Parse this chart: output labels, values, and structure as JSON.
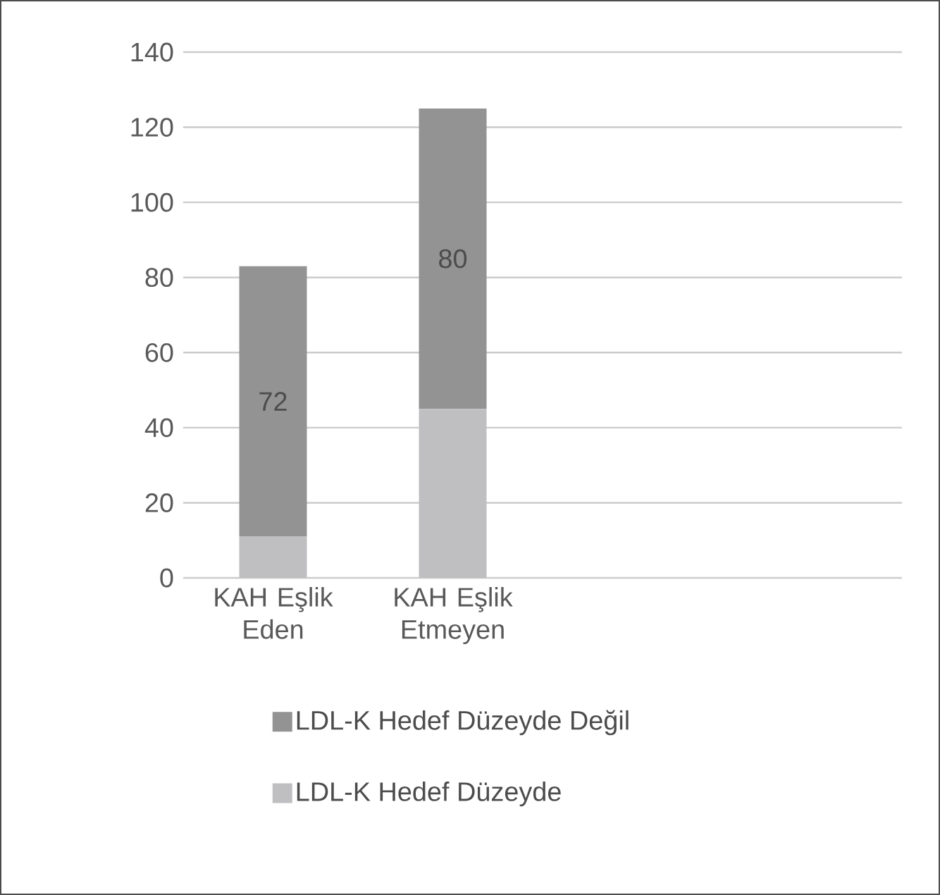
{
  "chart_data": {
    "type": "bar",
    "stacked": true,
    "categories": [
      "KAH Eşlik Eden",
      "KAH Eşlik Etmeyen"
    ],
    "series": [
      {
        "name": "LDL-K Hedef Düzeyde",
        "color": "#bfbfc1",
        "values": [
          11,
          45
        ],
        "value_labels": [
          null,
          null
        ]
      },
      {
        "name": "LDL-K Hedef Düzeyde Değil",
        "color": "#939393",
        "values": [
          72,
          80
        ],
        "value_labels": [
          "72",
          "80"
        ]
      }
    ],
    "ylim": [
      0,
      140
    ],
    "yticks": [
      0,
      20,
      40,
      60,
      80,
      100,
      120,
      140
    ],
    "grid": "y",
    "legend": "bottom"
  }
}
